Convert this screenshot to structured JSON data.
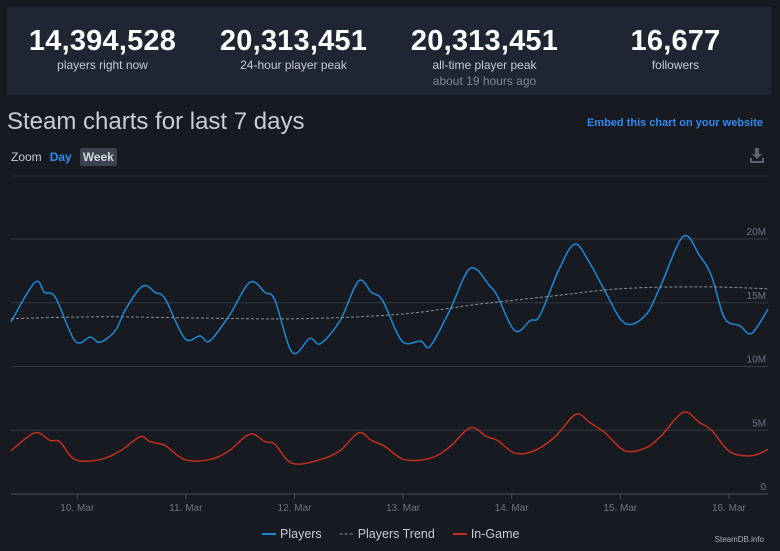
{
  "stats": [
    {
      "value": "14,394,528",
      "label": "players right now"
    },
    {
      "value": "20,313,451",
      "label": "24-hour player peak"
    },
    {
      "value": "20,313,451",
      "label": "all-time player peak",
      "sub": "about 19 hours ago"
    },
    {
      "value": "16,677",
      "label": "followers"
    }
  ],
  "title": "Steam charts for last 7 days",
  "embed_label": "Embed this chart on your website",
  "zoom": {
    "label": "Zoom",
    "day": "Day",
    "week": "Week"
  },
  "colors": {
    "players": "#1b8ad6",
    "trend": "#8a8f98",
    "ingame": "#c0301c"
  },
  "chart_data": {
    "type": "line",
    "x_unit": "day of March",
    "xlim": [
      9.39,
      16.36
    ],
    "ylim": [
      0,
      20
    ],
    "y_ticks": [
      {
        "v": 0,
        "label": "0"
      },
      {
        "v": 5,
        "label": "5M"
      },
      {
        "v": 10,
        "label": "10M"
      },
      {
        "v": 15,
        "label": "15M"
      },
      {
        "v": 20,
        "label": "20M"
      }
    ],
    "x_ticks": [
      {
        "v": 10,
        "label": "10. Mar"
      },
      {
        "v": 11,
        "label": "11. Mar"
      },
      {
        "v": 12,
        "label": "12. Mar"
      },
      {
        "v": 13,
        "label": "13. Mar"
      },
      {
        "v": 14,
        "label": "14. Mar"
      },
      {
        "v": 15,
        "label": "15. Mar"
      },
      {
        "v": 16,
        "label": "16. Mar"
      }
    ],
    "series": [
      {
        "name": "Players",
        "color": "#1b8ad6",
        "dash": false,
        "points": [
          [
            9.39,
            13.5
          ],
          [
            9.61,
            16.6
          ],
          [
            9.7,
            15.8
          ],
          [
            9.8,
            15.4
          ],
          [
            9.98,
            12.0
          ],
          [
            10.12,
            12.3
          ],
          [
            10.21,
            11.9
          ],
          [
            10.35,
            12.8
          ],
          [
            10.44,
            14.4
          ],
          [
            10.6,
            16.3
          ],
          [
            10.72,
            15.8
          ],
          [
            10.81,
            15.3
          ],
          [
            10.99,
            12.2
          ],
          [
            11.13,
            12.4
          ],
          [
            11.22,
            12.0
          ],
          [
            11.4,
            14.0
          ],
          [
            11.59,
            16.6
          ],
          [
            11.73,
            15.8
          ],
          [
            11.82,
            15.2
          ],
          [
            11.98,
            11.1
          ],
          [
            12.14,
            12.2
          ],
          [
            12.24,
            11.8
          ],
          [
            12.42,
            13.6
          ],
          [
            12.59,
            16.7
          ],
          [
            12.71,
            15.8
          ],
          [
            12.81,
            15.2
          ],
          [
            12.99,
            12.0
          ],
          [
            13.16,
            12.0
          ],
          [
            13.25,
            11.6
          ],
          [
            13.43,
            14.4
          ],
          [
            13.62,
            17.7
          ],
          [
            13.8,
            16.3
          ],
          [
            13.87,
            15.5
          ],
          [
            14.03,
            12.8
          ],
          [
            14.17,
            13.6
          ],
          [
            14.26,
            14.0
          ],
          [
            14.43,
            17.5
          ],
          [
            14.58,
            19.6
          ],
          [
            14.72,
            18.1
          ],
          [
            14.86,
            15.9
          ],
          [
            15.04,
            13.4
          ],
          [
            15.23,
            14.0
          ],
          [
            15.37,
            16.3
          ],
          [
            15.58,
            20.2
          ],
          [
            15.73,
            18.7
          ],
          [
            15.84,
            17.1
          ],
          [
            15.96,
            13.8
          ],
          [
            16.1,
            13.2
          ],
          [
            16.21,
            12.6
          ],
          [
            16.36,
            14.5
          ]
        ]
      },
      {
        "name": "Players Trend",
        "color": "#8a8f98",
        "dash": true,
        "points": [
          [
            9.39,
            13.75
          ],
          [
            10.21,
            13.9
          ],
          [
            11.13,
            13.8
          ],
          [
            12.05,
            13.75
          ],
          [
            12.97,
            14.1
          ],
          [
            13.71,
            14.9
          ],
          [
            14.35,
            15.5
          ],
          [
            15.0,
            16.1
          ],
          [
            15.73,
            16.25
          ],
          [
            16.36,
            16.1
          ]
        ]
      },
      {
        "name": "In-Game",
        "color": "#c0301c",
        "dash": false,
        "points": [
          [
            9.39,
            3.4
          ],
          [
            9.61,
            4.8
          ],
          [
            9.75,
            4.2
          ],
          [
            9.84,
            4.1
          ],
          [
            9.98,
            2.7
          ],
          [
            10.21,
            2.7
          ],
          [
            10.4,
            3.4
          ],
          [
            10.58,
            4.5
          ],
          [
            10.67,
            4.1
          ],
          [
            10.81,
            3.8
          ],
          [
            10.99,
            2.7
          ],
          [
            11.22,
            2.7
          ],
          [
            11.4,
            3.4
          ],
          [
            11.59,
            4.7
          ],
          [
            11.73,
            4.1
          ],
          [
            11.82,
            3.9
          ],
          [
            11.98,
            2.4
          ],
          [
            12.24,
            2.7
          ],
          [
            12.42,
            3.4
          ],
          [
            12.59,
            4.8
          ],
          [
            12.71,
            4.2
          ],
          [
            12.83,
            3.75
          ],
          [
            13.01,
            2.7
          ],
          [
            13.25,
            2.8
          ],
          [
            13.43,
            3.7
          ],
          [
            13.62,
            5.2
          ],
          [
            13.77,
            4.5
          ],
          [
            13.87,
            4.2
          ],
          [
            14.03,
            3.2
          ],
          [
            14.21,
            3.4
          ],
          [
            14.4,
            4.5
          ],
          [
            14.59,
            6.25
          ],
          [
            14.72,
            5.6
          ],
          [
            14.86,
            4.8
          ],
          [
            15.04,
            3.4
          ],
          [
            15.23,
            3.6
          ],
          [
            15.37,
            4.5
          ],
          [
            15.58,
            6.4
          ],
          [
            15.73,
            5.6
          ],
          [
            15.84,
            5.0
          ],
          [
            16.01,
            3.3
          ],
          [
            16.21,
            3.0
          ],
          [
            16.36,
            3.5
          ]
        ]
      }
    ],
    "legend_position": "bottom-center",
    "credit": "SteamDB.info"
  }
}
